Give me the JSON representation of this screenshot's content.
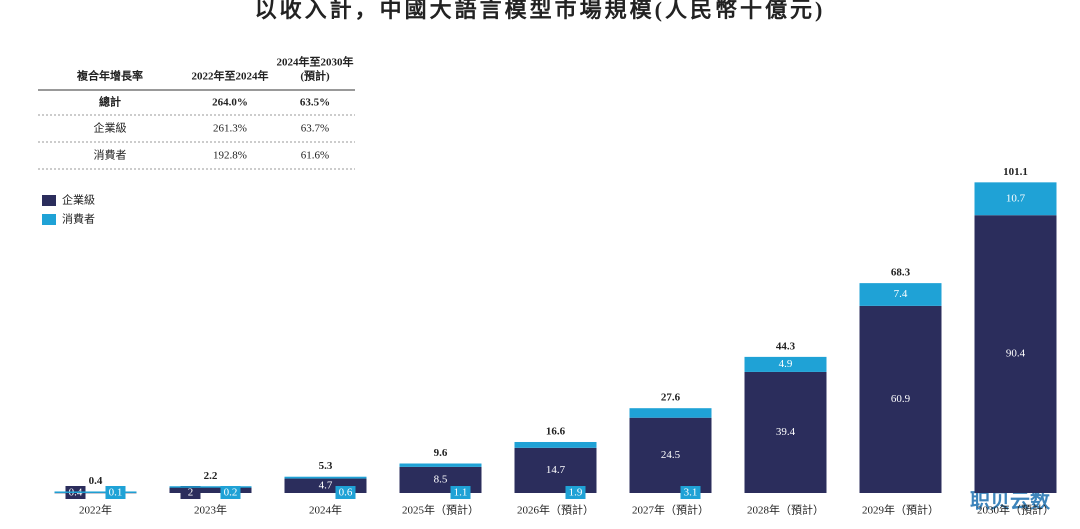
{
  "chart_data": {
    "type": "stacked-bar",
    "title": "以收入計，中國大語言模型市場規模(人民幣十億元)",
    "categories": [
      "2022年",
      "2023年",
      "2024年",
      "2025年（預計）",
      "2026年（預計）",
      "2027年（預計）",
      "2028年（預計）",
      "2029年（預計）",
      "2030年（預計）"
    ],
    "series": [
      {
        "name": "企業級",
        "color": "#2b2d5c",
        "values": [
          0.4,
          2.0,
          4.7,
          8.5,
          14.7,
          24.5,
          39.4,
          60.9,
          90.4
        ]
      },
      {
        "name": "消費者",
        "color": "#1fa2d6",
        "values": [
          0.1,
          0.2,
          0.6,
          1.1,
          1.9,
          3.1,
          4.9,
          7.4,
          10.7
        ]
      }
    ],
    "totals": [
      0.4,
      2.2,
      5.3,
      9.6,
      16.6,
      27.6,
      44.3,
      68.3,
      101.1
    ],
    "ylim": [
      0,
      110
    ]
  },
  "table": {
    "header": [
      "複合年增長率",
      "2022年至2024年",
      [
        "2024年至2030年",
        "(預計)"
      ]
    ],
    "rows": [
      [
        "總計",
        "264.0%",
        "63.5%"
      ],
      [
        "企業級",
        "261.3%",
        "63.7%"
      ],
      [
        "消費者",
        "192.8%",
        "61.6%"
      ]
    ]
  },
  "watermark": "职贝云数"
}
